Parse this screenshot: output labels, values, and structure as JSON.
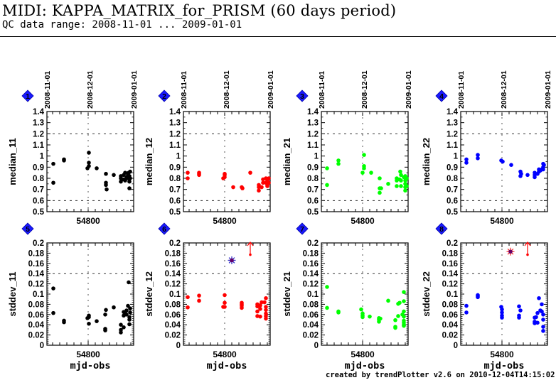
{
  "header": {
    "title": "MIDI: KAPPA_MATRIX_for_PRISM (60 days period)",
    "subtitle": "QC data range: 2008-11-01 ... 2009-01-01"
  },
  "footer": "created by trendPlotter v2.6 on 2010-12-04T14:15:02",
  "chart_data": [
    {
      "type": "scatter",
      "panel": "1",
      "ylabel": "median_11",
      "xlabel": "",
      "color": "#000000",
      "xlim": [
        54771,
        54832
      ],
      "ylim": [
        0.5,
        1.4
      ],
      "yticks": [
        "0.5",
        "0.6",
        "0.7",
        "0.8",
        "0.9",
        "1",
        "1.1",
        "1.2",
        "1.3",
        "1.4"
      ],
      "xtick_label": "54800",
      "top_date_labels": [
        "2008-11-01",
        "2008-12-01",
        "2009-01-01"
      ],
      "ref_lines": [
        0.6,
        1.2
      ],
      "points": [
        [
          54775.5,
          0.93
        ],
        [
          54775.5,
          0.76
        ],
        [
          54783,
          0.97
        ],
        [
          54783,
          0.96
        ],
        [
          54799.5,
          0.89
        ],
        [
          54800.5,
          0.91
        ],
        [
          54800.5,
          0.94
        ],
        [
          54800.5,
          1.03
        ],
        [
          54806,
          0.89
        ],
        [
          54812.5,
          0.84
        ],
        [
          54812.5,
          0.76
        ],
        [
          54812.5,
          0.74
        ],
        [
          54813,
          0.7
        ],
        [
          54818,
          0.83
        ],
        [
          54823,
          0.8
        ],
        [
          54823,
          0.77
        ],
        [
          54823,
          0.82
        ],
        [
          54825,
          0.83
        ],
        [
          54825,
          0.79
        ],
        [
          54826,
          0.85
        ],
        [
          54826,
          0.78
        ],
        [
          54827,
          0.81
        ],
        [
          54828,
          0.8
        ],
        [
          54828,
          0.83
        ],
        [
          54828.5,
          0.85
        ],
        [
          54829,
          0.77
        ],
        [
          54829,
          0.82
        ],
        [
          54829,
          0.71
        ],
        [
          54829.5,
          0.86
        ],
        [
          54829.5,
          0.8
        ]
      ]
    },
    {
      "type": "scatter",
      "panel": "2",
      "ylabel": "median_12",
      "xlabel": "",
      "color": "#ff0000",
      "xlim": [
        54771,
        54832
      ],
      "ylim": [
        0.5,
        1.4
      ],
      "yticks": [
        "0.5",
        "0.6",
        "0.7",
        "0.8",
        "0.9",
        "1",
        "1.1",
        "1.2",
        "1.3",
        "1.4"
      ],
      "xtick_label": "54800",
      "top_date_labels": [
        "2008-11-01",
        "2008-12-01",
        "2009-01-01"
      ],
      "ref_lines": [
        0.6,
        1.2
      ],
      "points": [
        [
          54774,
          0.85
        ],
        [
          54774,
          0.8
        ],
        [
          54782,
          0.85
        ],
        [
          54782,
          0.84
        ],
        [
          54782,
          0.83
        ],
        [
          54799,
          0.8
        ],
        [
          54800,
          0.81
        ],
        [
          54800,
          0.84
        ],
        [
          54800,
          0.83
        ],
        [
          54806,
          0.72
        ],
        [
          54812,
          0.72
        ],
        [
          54812.5,
          0.71
        ],
        [
          54818,
          0.85
        ],
        [
          54824,
          0.74
        ],
        [
          54824,
          0.72
        ],
        [
          54824,
          0.69
        ],
        [
          54826,
          0.72
        ],
        [
          54827,
          0.79
        ],
        [
          54827,
          0.76
        ],
        [
          54829,
          0.8
        ],
        [
          54829,
          0.76
        ],
        [
          54830,
          0.78
        ],
        [
          54830,
          0.74
        ],
        [
          54830,
          0.73
        ],
        [
          54831,
          0.8
        ],
        [
          54831,
          0.76
        ]
      ]
    },
    {
      "type": "scatter",
      "panel": "3",
      "ylabel": "median_21",
      "xlabel": "",
      "color": "#00ff00",
      "xlim": [
        54771,
        54832
      ],
      "ylim": [
        0.5,
        1.4
      ],
      "yticks": [
        "0.5",
        "0.6",
        "0.7",
        "0.8",
        "0.9",
        "1",
        "1.1",
        "1.2",
        "1.3",
        "1.4"
      ],
      "xtick_label": "54800",
      "top_date_labels": [
        "2008-11-01",
        "2008-12-01",
        "2009-01-01"
      ],
      "ref_lines": [
        0.6,
        1.2
      ],
      "points": [
        [
          54775,
          0.89
        ],
        [
          54775,
          0.74
        ],
        [
          54783,
          0.96
        ],
        [
          54783,
          0.93
        ],
        [
          54800,
          0.85
        ],
        [
          54801,
          0.91
        ],
        [
          54801,
          0.89
        ],
        [
          54801,
          1.01
        ],
        [
          54806,
          0.85
        ],
        [
          54812,
          0.8
        ],
        [
          54812,
          0.71
        ],
        [
          54812,
          0.67
        ],
        [
          54813,
          0.71
        ],
        [
          54818,
          0.75
        ],
        [
          54824,
          0.8
        ],
        [
          54824,
          0.78
        ],
        [
          54824,
          0.73
        ],
        [
          54826,
          0.79
        ],
        [
          54826.5,
          0.86
        ],
        [
          54827,
          0.83
        ],
        [
          54827,
          0.73
        ],
        [
          54827,
          0.78
        ],
        [
          54829,
          0.81
        ],
        [
          54830,
          0.82
        ],
        [
          54830,
          0.78
        ],
        [
          54830,
          0.75
        ],
        [
          54830,
          0.72
        ],
        [
          54830,
          0.69
        ],
        [
          54831,
          0.8
        ],
        [
          54831,
          0.73
        ]
      ]
    },
    {
      "type": "scatter",
      "panel": "4",
      "ylabel": "median_22",
      "xlabel": "",
      "color": "#0000ff",
      "xlim": [
        54771,
        54832
      ],
      "ylim": [
        0.5,
        1.4
      ],
      "yticks": [
        "0.5",
        "0.6",
        "0.7",
        "0.8",
        "0.9",
        "1",
        "1.1",
        "1.2",
        "1.3",
        "1.4"
      ],
      "xtick_label": "54800",
      "top_date_labels": [
        "2008-11-01",
        "2008-12-01",
        "2009-01-01"
      ],
      "ref_lines": [
        0.6,
        1.2
      ],
      "points": [
        [
          54775,
          0.97
        ],
        [
          54775,
          0.94
        ],
        [
          54783,
          1.01
        ],
        [
          54783,
          0.98
        ],
        [
          54799.5,
          0.96
        ],
        [
          54800.5,
          0.95
        ],
        [
          54806.5,
          0.92
        ],
        [
          54813,
          0.86
        ],
        [
          54813,
          0.82
        ],
        [
          54813.5,
          0.84
        ],
        [
          54818,
          0.83
        ],
        [
          54823,
          0.85
        ],
        [
          54823,
          0.81
        ],
        [
          54823,
          0.83
        ],
        [
          54825,
          0.84
        ],
        [
          54826,
          0.88
        ],
        [
          54826,
          0.86
        ],
        [
          54827,
          0.87
        ],
        [
          54828,
          0.88
        ],
        [
          54829,
          0.93
        ],
        [
          54829,
          0.9
        ],
        [
          54829,
          0.88
        ],
        [
          54829.5,
          0.92
        ]
      ]
    },
    {
      "type": "scatter",
      "panel": "5",
      "ylabel": "stddev_11",
      "xlabel": "mjd-obs",
      "color": "#000000",
      "xlim": [
        54771,
        54832
      ],
      "ylim": [
        0,
        0.2
      ],
      "yticks": [
        "0",
        "0.02",
        "0.04",
        "0.06",
        "0.08",
        "0.1",
        "0.12",
        "0.14",
        "0.16",
        "0.18",
        "0.2"
      ],
      "xtick_label": "54800",
      "ref_lines": [
        0.14
      ],
      "points": [
        [
          54775.5,
          0.111
        ],
        [
          54775.5,
          0.063
        ],
        [
          54783,
          0.048
        ],
        [
          54783,
          0.045
        ],
        [
          54799.5,
          0.053
        ],
        [
          54800.5,
          0.058
        ],
        [
          54800.5,
          0.055
        ],
        [
          54800.5,
          0.042
        ],
        [
          54806,
          0.047
        ],
        [
          54812,
          0.06
        ],
        [
          54812.5,
          0.069
        ],
        [
          54812,
          0.032
        ],
        [
          54812,
          0.029
        ],
        [
          54818,
          0.074
        ],
        [
          54823,
          0.04
        ],
        [
          54823,
          0.03
        ],
        [
          54823,
          0.025
        ],
        [
          54825,
          0.035
        ],
        [
          54825,
          0.065
        ],
        [
          54825,
          0.058
        ],
        [
          54826,
          0.063
        ],
        [
          54827,
          0.068
        ],
        [
          54827,
          0.06
        ],
        [
          54828,
          0.077
        ],
        [
          54828.5,
          0.123
        ],
        [
          54829,
          0.055
        ],
        [
          54829,
          0.05
        ],
        [
          54829,
          0.041
        ],
        [
          54829.5,
          0.064
        ],
        [
          54829.5,
          0.072
        ]
      ]
    },
    {
      "type": "scatter",
      "panel": "6",
      "ylabel": "stddev_12",
      "xlabel": "mjd-obs",
      "color": "#ff0000",
      "xlim": [
        54771,
        54832
      ],
      "ylim": [
        0,
        0.2
      ],
      "yticks": [
        "0",
        "0.02",
        "0.04",
        "0.06",
        "0.08",
        "0.1",
        "0.12",
        "0.14",
        "0.16",
        "0.18",
        "0.2"
      ],
      "xtick_label": "54800",
      "ref_lines": [
        0.14
      ],
      "points": [
        [
          54774,
          0.094
        ],
        [
          54774,
          0.074
        ],
        [
          54782,
          0.097
        ],
        [
          54782,
          0.087
        ],
        [
          54799,
          0.075
        ],
        [
          54800,
          0.098
        ],
        [
          54800,
          0.083
        ],
        [
          54800,
          0.075
        ],
        [
          54812,
          0.083
        ],
        [
          54812,
          0.08
        ],
        [
          54812,
          0.077
        ],
        [
          54812,
          0.073
        ],
        [
          54823,
          0.08
        ],
        [
          54823,
          0.076
        ],
        [
          54823,
          0.066
        ],
        [
          54823,
          0.057
        ],
        [
          54825,
          0.078
        ],
        [
          54825,
          0.071
        ],
        [
          54825,
          0.056
        ],
        [
          54826,
          0.084
        ],
        [
          54828,
          0.084
        ],
        [
          54829,
          0.092
        ],
        [
          54829,
          0.075
        ],
        [
          54829,
          0.069
        ],
        [
          54829,
          0.062
        ],
        [
          54829,
          0.057
        ],
        [
          54829,
          0.052
        ]
      ],
      "outlier_marker": {
        "mjd": 54805,
        "value": 0.166,
        "symbol": "asterisk",
        "color": "#3333cc"
      },
      "offscale_arrow": {
        "mjd": 54818,
        "value": 0.177,
        "color": "#ff0000"
      }
    },
    {
      "type": "scatter",
      "panel": "7",
      "ylabel": "stddev_21",
      "xlabel": "mjd-obs",
      "color": "#00ff00",
      "xlim": [
        54771,
        54832
      ],
      "ylim": [
        0,
        0.2
      ],
      "yticks": [
        "0",
        "0.02",
        "0.04",
        "0.06",
        "0.08",
        "0.1",
        "0.12",
        "0.14",
        "0.16",
        "0.18",
        "0.2"
      ],
      "xtick_label": "54800",
      "ref_lines": [
        0.14
      ],
      "points": [
        [
          54775,
          0.114
        ],
        [
          54775,
          0.073
        ],
        [
          54783,
          0.066
        ],
        [
          54783,
          0.064
        ],
        [
          54799,
          0.07
        ],
        [
          54800,
          0.062
        ],
        [
          54800,
          0.058
        ],
        [
          54800,
          0.055
        ],
        [
          54805,
          0.056
        ],
        [
          54811.5,
          0.053
        ],
        [
          54811.5,
          0.05
        ],
        [
          54811.5,
          0.046
        ],
        [
          54812.5,
          0.052
        ],
        [
          54818,
          0.087
        ],
        [
          54823,
          0.049
        ],
        [
          54823,
          0.036
        ],
        [
          54823,
          0.034
        ],
        [
          54825,
          0.057
        ],
        [
          54825,
          0.081
        ],
        [
          54826,
          0.083
        ],
        [
          54828,
          0.06
        ],
        [
          54829,
          0.104
        ],
        [
          54829,
          0.086
        ],
        [
          54829,
          0.066
        ],
        [
          54829,
          0.056
        ],
        [
          54829,
          0.048
        ],
        [
          54829,
          0.044
        ],
        [
          54829,
          0.04
        ],
        [
          54829,
          0.038
        ]
      ]
    },
    {
      "type": "scatter",
      "panel": "8",
      "ylabel": "stddev_22",
      "xlabel": "mjd-obs",
      "color": "#0000ff",
      "xlim": [
        54771,
        54832
      ],
      "ylim": [
        0,
        0.2
      ],
      "yticks": [
        "0",
        "0.02",
        "0.04",
        "0.06",
        "0.08",
        "0.1",
        "0.12",
        "0.14",
        "0.16",
        "0.18",
        "0.2"
      ],
      "xtick_label": "54800",
      "ref_lines": [
        0.14
      ],
      "points": [
        [
          54775,
          0.077
        ],
        [
          54775,
          0.064
        ],
        [
          54783,
          0.098
        ],
        [
          54783,
          0.096
        ],
        [
          54783,
          0.094
        ],
        [
          54799.5,
          0.075
        ],
        [
          54800,
          0.07
        ],
        [
          54800,
          0.064
        ],
        [
          54800,
          0.058
        ],
        [
          54800,
          0.054
        ],
        [
          54812,
          0.076
        ],
        [
          54812,
          0.058
        ],
        [
          54812,
          0.054
        ],
        [
          54813,
          0.068
        ],
        [
          54823,
          0.054
        ],
        [
          54823,
          0.046
        ],
        [
          54823,
          0.043
        ],
        [
          54824,
          0.055
        ],
        [
          54825,
          0.063
        ],
        [
          54825,
          0.044
        ],
        [
          54826,
          0.092
        ],
        [
          54827,
          0.068
        ],
        [
          54828,
          0.066
        ],
        [
          54828,
          0.08
        ],
        [
          54829,
          0.06
        ],
        [
          54829,
          0.05
        ],
        [
          54829,
          0.036
        ],
        [
          54829,
          0.028
        ]
      ],
      "outlier_marker": {
        "mjd": 54806,
        "value": 0.183,
        "symbol": "asterisk",
        "color": "#ff3333"
      },
      "offscale_arrow": {
        "mjd": 54818,
        "value": 0.177,
        "color": "#ff0000"
      }
    }
  ]
}
